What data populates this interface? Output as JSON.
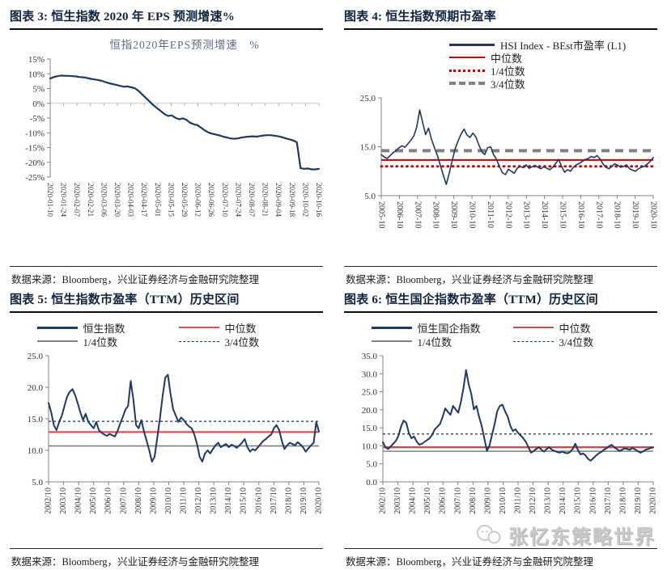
{
  "page": {
    "watermark": "张忆东策略世界"
  },
  "panels": [
    {
      "title": "图表 3:  恒生指数 2020 年 EPS 预测增速%",
      "source": "数据来源：Bloomberg，兴业证券经济与金融研究院整理"
    },
    {
      "title": "图表 4:  恒生指数预期市盈率",
      "source": "数据来源：Bloomberg，兴业证券经济与金融研究院整理"
    },
    {
      "title": "图表 5:  恒生指数市盈率（TTM）历史区间",
      "source": "数据来源：Bloomberg，兴业证券经济与金融研究院整理"
    },
    {
      "title": "图表 6:  恒生国企指数市盈率（TTM）历史区间",
      "source": "数据来源：Bloomberg，兴业证券经济与金融研究院整理"
    }
  ],
  "chart_data": [
    {
      "type": "line",
      "title": "恒指2020年EPS预测增速　%",
      "ylim": [
        -25,
        15
      ],
      "yticks": [
        15,
        10,
        5,
        0,
        -5,
        -10,
        -15,
        -20,
        -25
      ],
      "ytick_labels": [
        "15%",
        "10%",
        "5%",
        "0%",
        "-5%",
        "-10%",
        "-15%",
        "-20%",
        "-25%"
      ],
      "zero_line": 0,
      "grid": false,
      "x_labels": [
        "2020-01-10",
        "2020-01-24",
        "2020-02-07",
        "2020-02-21",
        "2020-03-06",
        "2020-03-20",
        "2020-04-03",
        "2020-04-17",
        "2020-05-01",
        "2020-05-15",
        "2020-05-29",
        "2020-06-12",
        "2020-06-26",
        "2020-07-10",
        "2020-07-24",
        "2020-08-07",
        "2020-08-21",
        "2020-09-04",
        "2020-09-18",
        "2020-10-02",
        "2020-10-16"
      ],
      "series": [
        {
          "name": "恒指2020年EPS预测增速",
          "color": "#1F3864",
          "width": 2.2,
          "values": [
            8.4,
            8.9,
            9.2,
            9.4,
            9.3,
            9.3,
            9.2,
            9.1,
            8.9,
            8.8,
            8.6,
            8.3,
            8.1,
            7.9,
            7.6,
            7.2,
            6.8,
            6.5,
            6.2,
            5.9,
            5.6,
            5.7,
            5.4,
            5.1,
            4.2,
            3.0,
            1.8,
            0.6,
            -0.6,
            -1.6,
            -2.6,
            -3.6,
            -4.3,
            -4.1,
            -4.9,
            -5.4,
            -5.1,
            -5.6,
            -6.6,
            -7.1,
            -7.4,
            -8.3,
            -9.2,
            -9.9,
            -10.3,
            -10.6,
            -10.9,
            -11.3,
            -11.6,
            -11.9,
            -12.0,
            -11.9,
            -11.6,
            -11.4,
            -11.3,
            -11.2,
            -11.3,
            -11.1,
            -10.9,
            -10.8,
            -10.8,
            -11.0,
            -11.2,
            -11.5,
            -11.9,
            -12.2,
            -12.6,
            -13.2,
            -22.0,
            -22.2,
            -22.1,
            -22.4,
            -22.4,
            -22.2
          ]
        }
      ]
    },
    {
      "type": "line",
      "ylim": [
        5,
        25
      ],
      "yticks": [
        25,
        15,
        5
      ],
      "ytick_labels": [
        "25.0",
        "15.0",
        "5.0"
      ],
      "x_labels": [
        "2005-10",
        "2006-10",
        "2007-10",
        "2008-10",
        "2009-10",
        "2010-10",
        "2011-10",
        "2012-10",
        "2013-10",
        "2014-10",
        "2015-10",
        "2016-10",
        "2017-10",
        "2018-10",
        "2019-10",
        "2020-10"
      ],
      "legend": [
        {
          "label": "HSI Index - BEst市盈率 (L1)",
          "color": "#1F3864",
          "type": "solid",
          "w": 3,
          "len": 56
        },
        {
          "label": "中位数",
          "color": "#C00000",
          "type": "solid",
          "w": 2,
          "len": 44
        },
        {
          "label": "1/4位数",
          "color": "#C00000",
          "type": "dotted",
          "w": 3,
          "len": 44
        },
        {
          "label": "3/4位数",
          "color": "#808080",
          "type": "dashed",
          "w": 4,
          "len": 44
        }
      ],
      "ref_lines": [
        {
          "name": "中位数",
          "value": 12.3,
          "color": "#C00000",
          "width": 2
        },
        {
          "name": "1/4位数",
          "value": 11.0,
          "color": "#C00000",
          "width": 3,
          "dash": "0.8 5.5",
          "cap": "round"
        },
        {
          "name": "3/4位数",
          "value": 14.2,
          "color": "#808080",
          "width": 4,
          "dash": "10 7"
        }
      ],
      "series": [
        {
          "name": "HSI Index - BEst市盈率 (L1)",
          "color": "#1F3864",
          "width": 1.6,
          "values": [
            13.4,
            12.9,
            12.6,
            13.2,
            13.8,
            14.2,
            14.8,
            15.2,
            14.9,
            15.6,
            16.3,
            17.2,
            19.0,
            22.5,
            20.0,
            17.5,
            18.8,
            16.5,
            14.8,
            13.2,
            11.2,
            9.2,
            7.3,
            9.6,
            12.2,
            14.6,
            16.2,
            17.6,
            18.6,
            17.4,
            16.9,
            17.8,
            17.0,
            15.4,
            14.0,
            13.4,
            14.8,
            15.0,
            13.4,
            12.4,
            10.9,
            9.7,
            9.3,
            10.4,
            10.0,
            9.6,
            10.6,
            11.0,
            10.7,
            11.3,
            10.6,
            10.9,
            11.2,
            10.8,
            10.5,
            10.9,
            10.6,
            10.3,
            10.8,
            11.6,
            12.4,
            11.0,
            9.8,
            10.3,
            10.0,
            10.8,
            11.3,
            11.6,
            12.0,
            12.4,
            12.6,
            13.0,
            12.8,
            13.2,
            12.5,
            11.5,
            10.8,
            10.5,
            11.0,
            11.5,
            11.2,
            10.8,
            11.0,
            11.3,
            10.5,
            10.2,
            10.0,
            10.5,
            10.8,
            11.0,
            11.5,
            12.0,
            12.8
          ]
        }
      ]
    },
    {
      "type": "line",
      "ylim": [
        5,
        25
      ],
      "yticks": [
        25,
        20,
        15,
        10,
        5
      ],
      "ytick_labels": [
        "25.0",
        "20.0",
        "15.0",
        "10.0",
        "5.0"
      ],
      "x_labels": [
        "2002/10",
        "2003/10",
        "2004/10",
        "2005/10",
        "2006/10",
        "2007/10",
        "2008/10",
        "2009/10",
        "2010/10",
        "2011/10",
        "2012/10",
        "2013/10",
        "2014/10",
        "2015/10",
        "2016/10",
        "2017/10",
        "2018/10",
        "2019/10",
        "2020/10"
      ],
      "legend": [
        {
          "label": "恒生指数",
          "color": "#1F3864",
          "type": "solid",
          "w": 3,
          "len": 50
        },
        {
          "label": "中位数",
          "color": "#E05050",
          "type": "solid",
          "w": 2,
          "len": 50
        },
        {
          "label": "1/4位数",
          "color": "#808080",
          "type": "solid",
          "w": 2,
          "len": 50
        },
        {
          "label": "3/4位数",
          "color": "#17375E",
          "type": "dashed",
          "w": 1,
          "len": 50
        }
      ],
      "ref_lines": [
        {
          "name": "中位数",
          "value": 12.9,
          "color": "#E05050",
          "width": 2.2
        },
        {
          "name": "1/4位数",
          "value": 10.7,
          "color": "#808080",
          "width": 1.6
        },
        {
          "name": "3/4位数",
          "value": 14.6,
          "color": "#17375E",
          "width": 1.2,
          "dash": "3 3"
        }
      ],
      "series": [
        {
          "name": "恒生指数",
          "color": "#1F3864",
          "width": 2,
          "values": [
            17.5,
            16.0,
            14.0,
            13.2,
            14.5,
            15.5,
            17.0,
            18.5,
            19.3,
            19.7,
            18.8,
            17.5,
            16.0,
            14.8,
            15.8,
            14.5,
            14.0,
            13.5,
            14.5,
            13.2,
            12.8,
            12.5,
            12.3,
            12.6,
            12.4,
            12.2,
            13.0,
            14.2,
            15.3,
            16.5,
            17.0,
            21.0,
            18.0,
            14.0,
            13.5,
            14.8,
            13.0,
            11.5,
            10.0,
            8.2,
            9.0,
            12.0,
            15.0,
            18.5,
            21.5,
            22.0,
            19.0,
            16.5,
            15.5,
            14.5,
            15.2,
            14.8,
            14.2,
            13.8,
            13.5,
            12.5,
            11.0,
            9.0,
            8.2,
            9.5,
            10.0,
            9.5,
            10.2,
            10.8,
            11.2,
            10.5,
            10.8,
            11.0,
            10.5,
            10.9,
            10.7,
            10.4,
            10.8,
            11.2,
            11.8,
            10.5,
            9.8,
            10.2,
            10.0,
            10.5,
            11.0,
            11.5,
            11.8,
            12.2,
            12.5,
            13.5,
            14.0,
            13.2,
            11.5,
            10.2,
            10.8,
            11.2,
            11.0,
            10.8,
            11.3,
            10.9,
            10.5,
            9.8,
            10.3,
            10.8,
            11.2,
            14.5,
            13.0
          ]
        }
      ]
    },
    {
      "type": "line",
      "ylim": [
        0,
        35
      ],
      "yticks": [
        35,
        30,
        25,
        20,
        15,
        10,
        5,
        0
      ],
      "ytick_labels": [
        "35.0",
        "30.0",
        "25.0",
        "20.0",
        "15.0",
        "10.0",
        "5.0",
        "0.0"
      ],
      "x_labels": [
        "2002/10",
        "2003/10",
        "2004/10",
        "2005/10",
        "2006/10",
        "2007/10",
        "2008/10",
        "2009/10",
        "2010/10",
        "2011/10",
        "2012/10",
        "2013/10",
        "2014/10",
        "2015/10",
        "2016/10",
        "2017/10",
        "2018/10",
        "2019/10",
        "2020/10"
      ],
      "legend": [
        {
          "label": "恒生国企指数",
          "color": "#1F3864",
          "type": "solid",
          "w": 3,
          "len": 50
        },
        {
          "label": "中位数",
          "color": "#C0504D",
          "type": "solid",
          "w": 2,
          "len": 50
        },
        {
          "label": "1/4位数",
          "color": "#808080",
          "type": "solid",
          "w": 2,
          "len": 50
        },
        {
          "label": "3/4位数",
          "color": "#17375E",
          "type": "dashed",
          "w": 1,
          "len": 50
        }
      ],
      "ref_lines": [
        {
          "name": "中位数",
          "value": 9.6,
          "color": "#C0504D",
          "width": 2.4
        },
        {
          "name": "1/4位数",
          "value": 8.5,
          "color": "#808080",
          "width": 1.6
        },
        {
          "name": "3/4位数",
          "value": 13.3,
          "color": "#17375E",
          "width": 1.2,
          "dash": "3 3"
        }
      ],
      "series": [
        {
          "name": "恒生国企指数",
          "color": "#1F3864",
          "width": 2,
          "values": [
            11.0,
            9.6,
            9.1,
            9.8,
            10.6,
            11.4,
            12.8,
            15.4,
            17.0,
            16.4,
            13.6,
            12.1,
            12.6,
            11.2,
            10.3,
            10.6,
            11.1,
            11.6,
            12.1,
            13.1,
            14.6,
            15.3,
            16.1,
            18.1,
            20.4,
            19.4,
            18.6,
            21.1,
            20.1,
            19.2,
            22.1,
            26.1,
            31.0,
            27.1,
            24.4,
            20.1,
            21.1,
            18.1,
            15.6,
            12.1,
            8.6,
            10.1,
            13.1,
            16.1,
            19.6,
            21.1,
            21.4,
            19.6,
            18.1,
            15.6,
            14.1,
            14.6,
            13.6,
            12.9,
            12.1,
            11.1,
            9.6,
            8.1,
            8.6,
            9.1,
            9.6,
            8.9,
            8.4,
            9.1,
            9.6,
            8.9,
            8.6,
            8.3,
            8.1,
            8.4,
            8.1,
            7.9,
            8.3,
            9.1,
            10.6,
            8.9,
            7.6,
            7.9,
            7.3,
            6.3,
            5.9,
            6.6,
            7.3,
            7.9,
            8.3,
            8.9,
            9.3,
            9.9,
            10.3,
            9.6,
            9.1,
            8.6,
            8.9,
            9.3,
            9.1,
            8.9,
            9.4,
            9.0,
            8.6,
            8.1,
            8.4,
            8.9,
            9.1,
            9.4,
            9.6
          ]
        }
      ]
    }
  ]
}
